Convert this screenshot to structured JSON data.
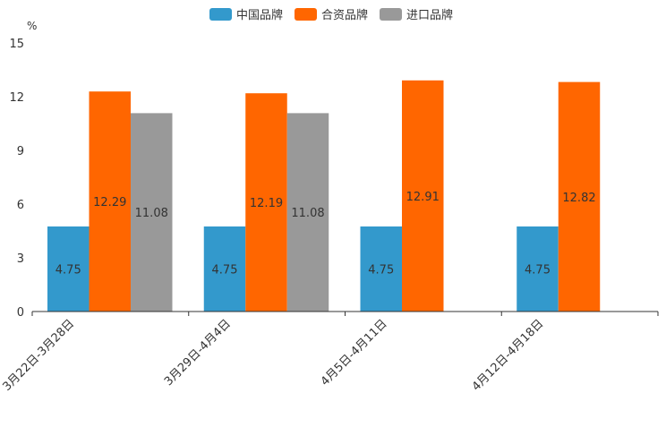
{
  "chart_data": {
    "type": "bar",
    "ylabel": "%",
    "ylim": [
      0,
      15
    ],
    "yticks": [
      0,
      3,
      6,
      9,
      12,
      15
    ],
    "categories": [
      "3月22日-3月28日",
      "3月29日-4月4日",
      "4月5日-4月11日",
      "4月12日-4月18日"
    ],
    "series": [
      {
        "name": "中国品牌",
        "color": "#3399cc",
        "values": [
          4.75,
          4.75,
          4.75,
          4.75
        ]
      },
      {
        "name": "合资品牌",
        "color": "#ff6600",
        "values": [
          12.29,
          12.19,
          12.91,
          12.82
        ]
      },
      {
        "name": "进口品牌",
        "color": "#999999",
        "values": [
          11.08,
          11.08,
          null,
          null
        ]
      }
    ],
    "legend_position": "top-center",
    "grid": false
  }
}
